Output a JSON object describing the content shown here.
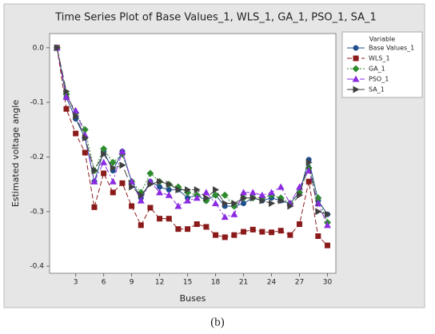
{
  "chart_data": {
    "type": "line",
    "title": "Time Series Plot of Base Values_1, WLS_1, GA_1, PSO_1, SA_1",
    "xlabel": "Buses",
    "ylabel": "Estimated voltage angle",
    "legend_title": "Variable",
    "legend": "right",
    "caption": "(b)",
    "x": [
      1,
      2,
      3,
      4,
      5,
      6,
      7,
      8,
      9,
      10,
      11,
      12,
      13,
      14,
      15,
      16,
      17,
      18,
      19,
      20,
      21,
      22,
      23,
      24,
      25,
      26,
      27,
      28,
      29,
      30
    ],
    "xlim": [
      0.2,
      30.9
    ],
    "xticks": [
      3,
      6,
      9,
      12,
      15,
      18,
      21,
      24,
      27,
      30
    ],
    "ylim": [
      -0.413,
      0.026
    ],
    "yticks": [
      {
        "value": 0,
        "label": "0.0"
      },
      -0.1,
      -0.2,
      -0.3,
      -0.4
    ],
    "series": [
      {
        "name": "Base Values_1",
        "color": "#1f4e8c",
        "marker": "circle",
        "dash": "none",
        "values": [
          0,
          -0.091,
          -0.13,
          -0.165,
          -0.245,
          -0.19,
          -0.225,
          -0.19,
          -0.245,
          -0.275,
          -0.245,
          -0.255,
          -0.26,
          -0.26,
          -0.275,
          -0.27,
          -0.28,
          -0.27,
          -0.29,
          -0.29,
          -0.285,
          -0.275,
          -0.28,
          -0.275,
          -0.28,
          -0.285,
          -0.265,
          -0.205,
          -0.28,
          -0.305
        ]
      },
      {
        "name": "WLS_1",
        "color": "#8b1a1a",
        "marker": "square",
        "dash": "6 3",
        "values": [
          0,
          -0.112,
          -0.157,
          -0.192,
          -0.292,
          -0.23,
          -0.265,
          -0.248,
          -0.29,
          -0.325,
          -0.293,
          -0.313,
          -0.313,
          -0.332,
          -0.332,
          -0.323,
          -0.328,
          -0.343,
          -0.347,
          -0.343,
          -0.337,
          -0.333,
          -0.337,
          -0.338,
          -0.335,
          -0.343,
          -0.323,
          -0.245,
          -0.345,
          -0.362
        ]
      },
      {
        "name": "GA_1",
        "color": "#2e8b2e",
        "marker": "diamond",
        "dash": "2 2",
        "values": [
          0,
          -0.085,
          -0.12,
          -0.15,
          -0.225,
          -0.185,
          -0.21,
          -0.195,
          -0.245,
          -0.265,
          -0.23,
          -0.245,
          -0.25,
          -0.255,
          -0.265,
          -0.27,
          -0.28,
          -0.27,
          -0.27,
          -0.29,
          -0.275,
          -0.275,
          -0.275,
          -0.27,
          -0.275,
          -0.285,
          -0.265,
          -0.22,
          -0.275,
          -0.32
        ]
      },
      {
        "name": "PSO_1",
        "color": "#8a2be2",
        "marker": "triangle",
        "dash": "8 3 2 3",
        "values": [
          0,
          -0.09,
          -0.115,
          -0.16,
          -0.245,
          -0.21,
          -0.245,
          -0.19,
          -0.245,
          -0.28,
          -0.245,
          -0.265,
          -0.27,
          -0.29,
          -0.28,
          -0.275,
          -0.265,
          -0.285,
          -0.31,
          -0.305,
          -0.265,
          -0.265,
          -0.27,
          -0.265,
          -0.255,
          -0.285,
          -0.255,
          -0.225,
          -0.285,
          -0.325
        ]
      },
      {
        "name": "SA_1",
        "color": "#404040",
        "marker": "tri-right",
        "dash": "10 4",
        "values": [
          0,
          -0.08,
          -0.125,
          -0.165,
          -0.225,
          -0.195,
          -0.22,
          -0.215,
          -0.255,
          -0.27,
          -0.25,
          -0.245,
          -0.25,
          -0.26,
          -0.26,
          -0.26,
          -0.275,
          -0.26,
          -0.285,
          -0.285,
          -0.275,
          -0.275,
          -0.28,
          -0.285,
          -0.28,
          -0.29,
          -0.27,
          -0.21,
          -0.3,
          -0.305
        ]
      }
    ]
  }
}
